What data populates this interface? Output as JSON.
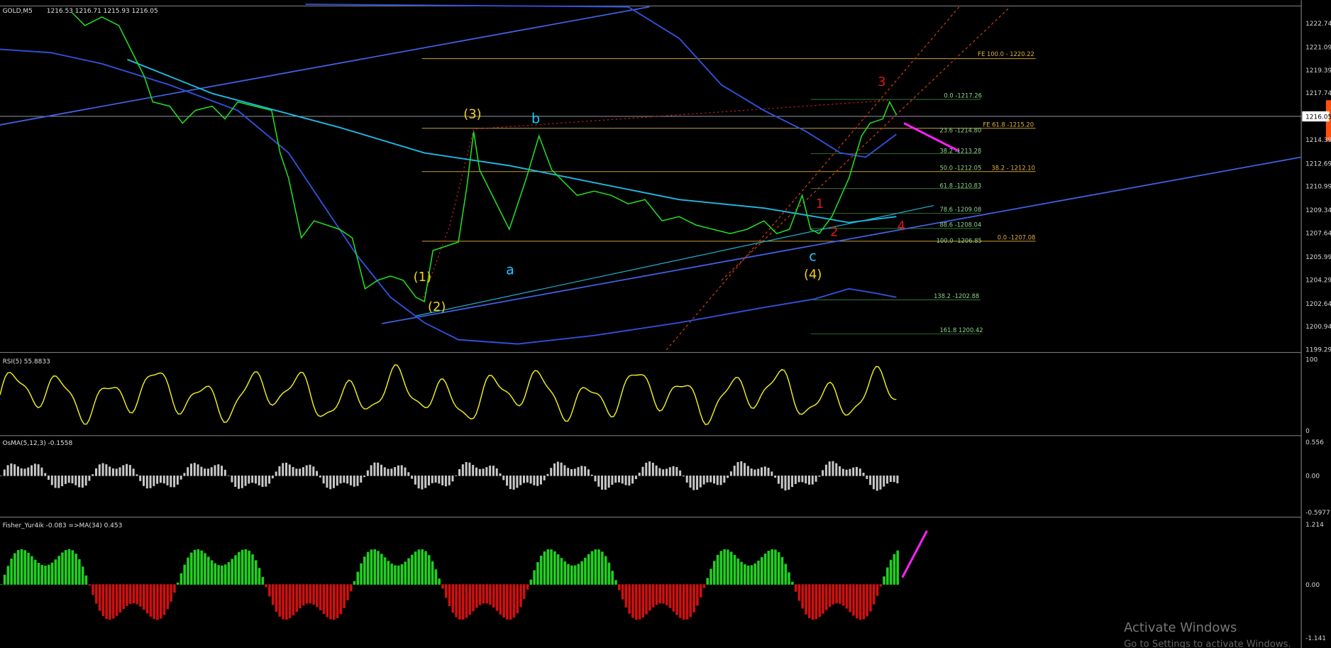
{
  "header": {
    "symbol": "GOLD,M5",
    "ohlc": "1216.53 1216.71 1215.93 1216.05"
  },
  "price_axis": [
    "1222.74",
    "1221.09",
    "1219.39",
    "1217.74",
    "1216.05",
    "1214.39",
    "1212.69",
    "1210.99",
    "1209.34",
    "1207.64",
    "1205.99",
    "1204.29",
    "1202.64",
    "1200.94",
    "1199.29"
  ],
  "rsi": {
    "title": "RSI(5) 55.8833",
    "axis": [
      "100",
      "0"
    ]
  },
  "osma": {
    "title": "OsMA(5,12,3) -0.1558",
    "axis": [
      "0.556",
      "0.00",
      "-0.5977"
    ]
  },
  "fisher": {
    "title": "Fisher_Yur4ik -0.083  =>MA(34) 0.453",
    "axis": [
      "1.214",
      "0.00",
      "-1.141"
    ]
  },
  "fib_labels": [
    "0.0 -1217.26",
    "23.6 -1214.80",
    "38.2 -1213.28",
    "50.0 -1212.05",
    "61.8 -1210.83",
    "78.6 -1209.08",
    "88.6 -1208.04",
    "100.0 -1206.85",
    "138.2 -1202.88",
    "161.8 1200.42"
  ],
  "fe_labels": [
    "FE 100.0 - 1220.22",
    "FE 61.8 -1215.20",
    "38.2 - 1212.10",
    "0.0 -1207.08"
  ],
  "wave_labels": [
    "(1)",
    "(2)",
    "(3)",
    "(4)",
    "a",
    "b",
    "c",
    "1",
    "2",
    "3",
    "4"
  ],
  "watermark": {
    "title": "Activate Windows",
    "subtitle": "Go to Settings to activate Windows."
  }
}
